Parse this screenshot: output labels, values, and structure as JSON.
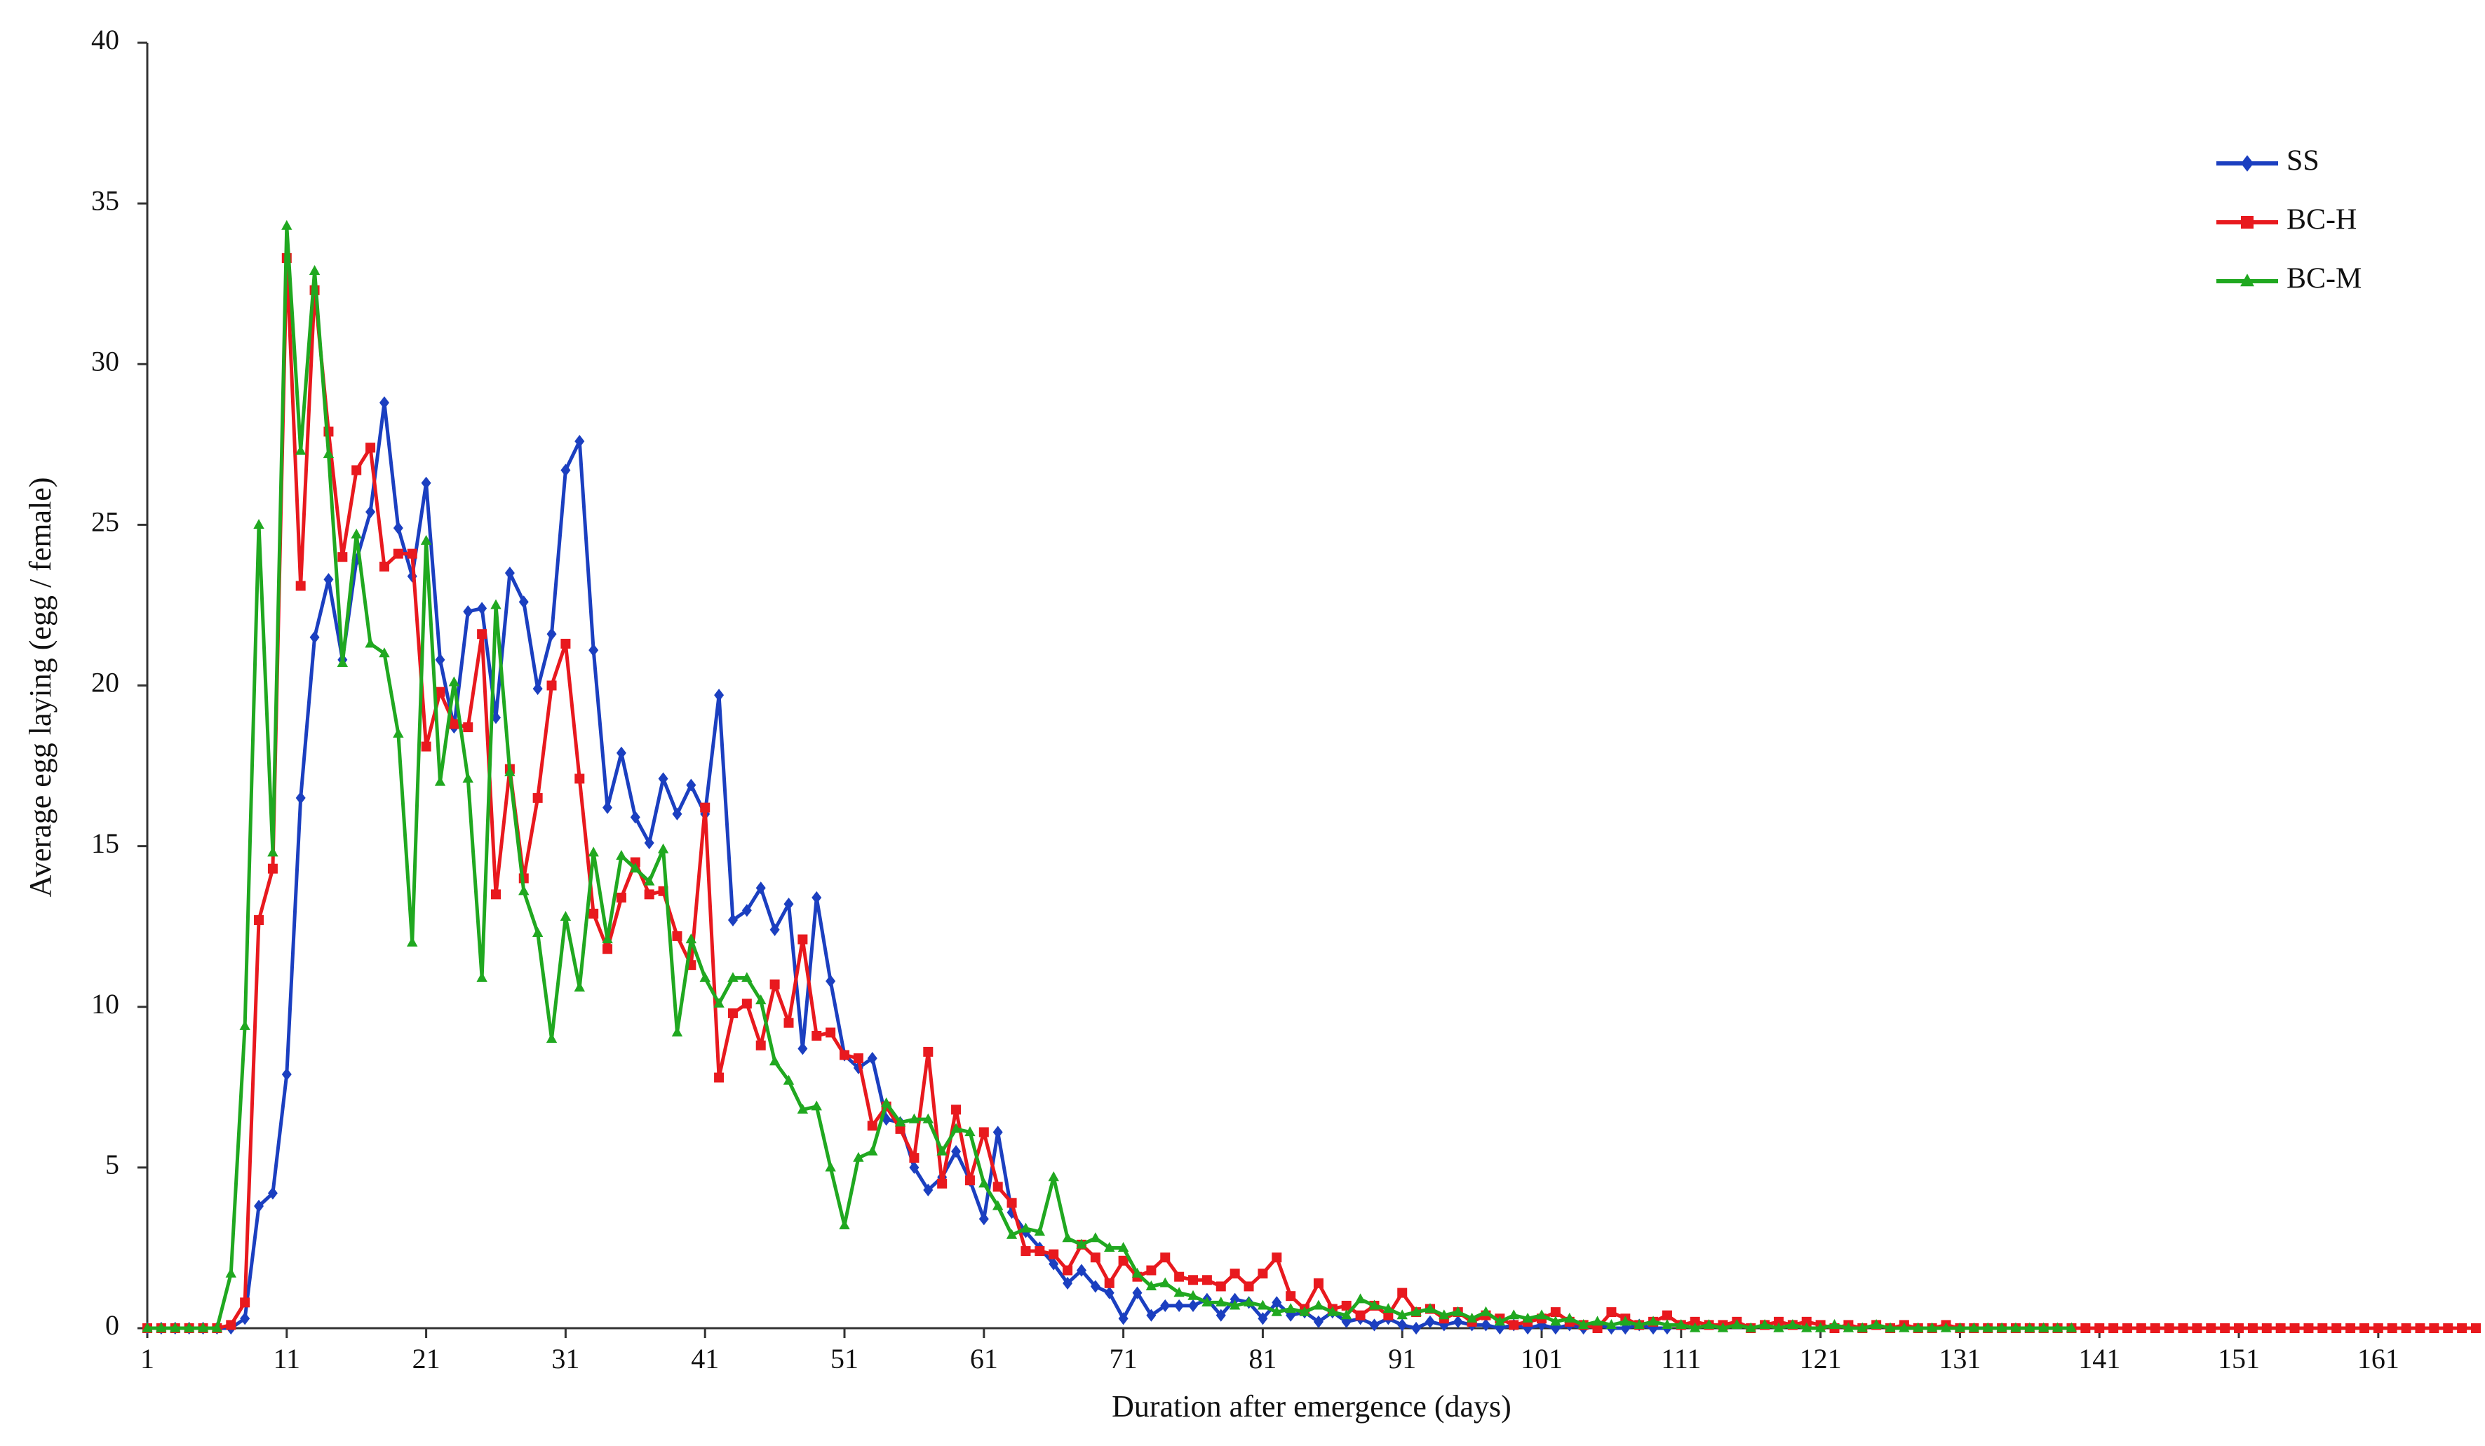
{
  "chart_data": {
    "type": "line",
    "xlabel": "Duration after emergence (days)",
    "ylabel": "Average egg laying (egg / female)",
    "x": [
      1,
      2,
      3,
      4,
      5,
      6,
      7,
      8,
      9,
      10,
      11,
      12,
      13,
      14,
      15,
      16,
      17,
      18,
      19,
      20,
      21,
      22,
      23,
      24,
      25,
      26,
      27,
      28,
      29,
      30,
      31,
      32,
      33,
      34,
      35,
      36,
      37,
      38,
      39,
      40,
      41,
      42,
      43,
      44,
      45,
      46,
      47,
      48,
      49,
      50,
      51,
      52,
      53,
      54,
      55,
      56,
      57,
      58,
      59,
      60,
      61,
      62,
      63,
      64,
      65,
      66,
      67,
      68,
      69,
      70,
      71,
      72,
      73,
      74,
      75,
      76,
      77,
      78,
      79,
      80,
      81,
      82,
      83,
      84,
      85,
      86,
      87,
      88,
      89,
      90,
      91,
      92,
      93,
      94,
      95,
      96,
      97,
      98,
      99,
      100,
      101,
      102,
      103,
      104,
      105,
      106,
      107,
      108,
      109,
      110,
      111,
      112,
      113,
      114,
      115,
      116,
      117,
      118,
      119,
      120,
      121,
      122,
      123,
      124,
      125,
      126,
      127,
      128,
      129,
      130,
      131,
      132,
      133,
      134,
      135,
      136,
      137,
      138,
      139,
      140,
      141,
      142,
      143,
      144,
      145,
      146,
      147,
      148,
      149,
      150,
      151,
      152,
      153,
      154,
      155,
      156,
      157,
      158,
      159,
      160,
      161,
      162,
      163,
      164,
      165,
      166,
      167,
      168
    ],
    "series": [
      {
        "name": "SS",
        "color": "#1b3fc0",
        "marker": "diamond",
        "values": [
          0,
          0,
          0,
          0,
          0,
          0,
          0,
          0.3,
          3.8,
          4.2,
          7.9,
          16.5,
          21.5,
          23.3,
          20.8,
          23.9,
          25.4,
          28.8,
          24.9,
          23.4,
          26.3,
          20.8,
          18.7,
          22.3,
          22.4,
          19.0,
          23.5,
          22.6,
          19.9,
          21.6,
          26.7,
          27.6,
          21.1,
          16.2,
          17.9,
          15.9,
          15.1,
          17.1,
          16.0,
          16.9,
          16.0,
          19.7,
          12.7,
          13.0,
          13.7,
          12.4,
          13.2,
          8.7,
          13.4,
          10.8,
          8.5,
          8.1,
          8.4,
          6.5,
          6.4,
          5.0,
          4.3,
          4.7,
          5.5,
          4.6,
          3.4,
          6.1,
          3.6,
          3.0,
          2.5,
          2.0,
          1.4,
          1.8,
          1.3,
          1.1,
          0.3,
          1.1,
          0.4,
          0.7,
          0.7,
          0.7,
          0.9,
          0.4,
          0.9,
          0.8,
          0.3,
          0.8,
          0.4,
          0.5,
          0.2,
          0.5,
          0.2,
          0.3,
          0.1,
          0.3,
          0.1,
          0,
          0.2,
          0.1,
          0.2,
          0.1,
          0.1,
          0,
          0.1,
          0,
          0.1,
          0,
          0.1,
          0,
          0.1,
          0,
          0,
          0.1,
          0,
          0,
          null,
          null,
          null,
          null,
          null,
          null,
          null,
          null,
          null,
          null,
          null,
          null,
          null,
          null,
          null,
          null,
          null,
          null,
          null,
          null,
          null,
          null,
          null,
          null,
          null,
          null,
          null,
          null,
          null,
          null,
          null,
          null,
          null,
          null,
          null,
          null,
          null,
          null,
          null,
          null,
          null,
          null,
          null,
          null,
          null,
          null,
          null,
          null,
          null,
          null,
          null,
          null,
          null,
          null,
          null,
          null,
          null,
          null
        ]
      },
      {
        "name": "BC-H",
        "color": "#e8191e",
        "marker": "square",
        "values": [
          0,
          0,
          0,
          0,
          0,
          0,
          0.1,
          0.8,
          12.7,
          14.3,
          33.3,
          23.1,
          32.3,
          27.9,
          24.0,
          26.7,
          27.4,
          23.7,
          24.1,
          24.1,
          18.1,
          19.8,
          18.8,
          18.7,
          21.6,
          13.5,
          17.4,
          14.0,
          16.5,
          20.0,
          21.3,
          17.1,
          12.9,
          11.8,
          13.4,
          14.5,
          13.5,
          13.6,
          12.2,
          11.3,
          16.2,
          7.8,
          9.8,
          10.1,
          8.8,
          10.7,
          9.5,
          12.1,
          9.1,
          9.2,
          8.5,
          8.4,
          6.3,
          6.9,
          6.2,
          5.3,
          8.6,
          4.5,
          6.8,
          4.6,
          6.1,
          4.4,
          3.9,
          2.4,
          2.4,
          2.3,
          1.8,
          2.6,
          2.2,
          1.4,
          2.1,
          1.6,
          1.8,
          2.2,
          1.6,
          1.5,
          1.5,
          1.3,
          1.7,
          1.3,
          1.7,
          2.2,
          1.0,
          0.6,
          1.4,
          0.6,
          0.7,
          0.4,
          0.7,
          0.4,
          1.1,
          0.5,
          0.6,
          0.3,
          0.5,
          0.2,
          0.4,
          0.3,
          0.1,
          0.2,
          0.3,
          0.5,
          0.2,
          0.1,
          0,
          0.5,
          0.3,
          0.1,
          0.2,
          0.4,
          0.1,
          0.2,
          0.1,
          0.1,
          0.2,
          0,
          0.1,
          0.2,
          0.1,
          0.2,
          0.1,
          0,
          0.1,
          0,
          0.1,
          0,
          0.1,
          0,
          0,
          0.1,
          0,
          0,
          0,
          0,
          0,
          0,
          0,
          0,
          0,
          0,
          0,
          0,
          0,
          0,
          0,
          0,
          0,
          0,
          0,
          0,
          0,
          0,
          0,
          0,
          0,
          0,
          0,
          0,
          0,
          0,
          0,
          0,
          0,
          0,
          0,
          0,
          0,
          0
        ]
      },
      {
        "name": "BC-M",
        "color": "#20a820",
        "marker": "triangle",
        "values": [
          0,
          0,
          0,
          0,
          0,
          0,
          1.7,
          9.4,
          25.0,
          14.8,
          34.3,
          27.3,
          32.9,
          27.2,
          20.7,
          24.7,
          21.3,
          21.0,
          18.5,
          12.0,
          24.5,
          17.0,
          20.1,
          17.1,
          10.9,
          22.5,
          17.3,
          13.6,
          12.3,
          9.0,
          12.8,
          10.6,
          14.8,
          12.1,
          14.7,
          14.3,
          13.9,
          14.9,
          9.2,
          12.1,
          10.9,
          10.1,
          10.9,
          10.9,
          10.2,
          8.3,
          7.7,
          6.8,
          6.9,
          5.0,
          3.2,
          5.3,
          5.5,
          7.0,
          6.4,
          6.5,
          6.5,
          5.5,
          6.2,
          6.1,
          4.5,
          3.8,
          2.9,
          3.1,
          3.0,
          4.7,
          2.8,
          2.6,
          2.8,
          2.5,
          2.5,
          1.7,
          1.3,
          1.4,
          1.1,
          1.0,
          0.8,
          0.8,
          0.7,
          0.8,
          0.7,
          0.5,
          0.6,
          0.5,
          0.7,
          0.5,
          0.4,
          0.9,
          0.7,
          0.6,
          0.4,
          0.5,
          0.6,
          0.4,
          0.5,
          0.3,
          0.5,
          0.2,
          0.4,
          0.3,
          0.4,
          0.2,
          0.3,
          0.1,
          0.2,
          0.1,
          0.2,
          0.1,
          0.2,
          0.1,
          0.1,
          0,
          0.1,
          0,
          0.1,
          0,
          0.1,
          0,
          0.1,
          0,
          0,
          0.1,
          0,
          0,
          0.1,
          0,
          0,
          0,
          0,
          0,
          0,
          0,
          0,
          0,
          0,
          0,
          0,
          0,
          0,
          null,
          null,
          null,
          null,
          null,
          null,
          null,
          null,
          null,
          null,
          null,
          null,
          null,
          null,
          null,
          null,
          null,
          null,
          null,
          null,
          null,
          null,
          null,
          null,
          null,
          null,
          null,
          null,
          null
        ]
      }
    ],
    "xlim": [
      1,
      168
    ],
    "xticks": [
      1,
      11,
      21,
      31,
      41,
      51,
      61,
      71,
      81,
      91,
      101,
      111,
      121,
      131,
      141,
      151,
      161
    ],
    "ylim": [
      0,
      40
    ],
    "yticks": [
      0,
      5,
      10,
      15,
      20,
      25,
      30,
      35,
      40
    ],
    "grid": false,
    "legend": "upper right"
  }
}
